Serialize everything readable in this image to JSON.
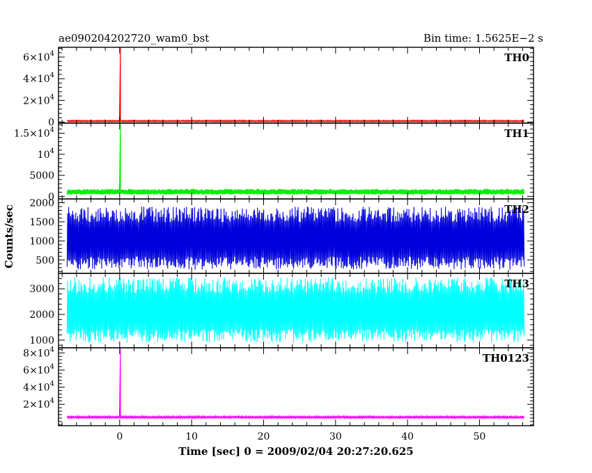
{
  "header": {
    "left_title": "ae090204202720_wam0_bst",
    "right_title": "Bin time: 1.5625E−2 s"
  },
  "chart_data": {
    "type": "line",
    "xlabel": "Time [sec] 0 = 2009/02/04 20:27:20.625",
    "ylabel": "Counts/sec",
    "xlim": [
      -8.5,
      57.5
    ],
    "x_ticks": [
      0,
      10,
      20,
      30,
      40,
      50
    ],
    "x_tick_labels": [
      "0",
      "10",
      "20",
      "30",
      "40",
      "50"
    ],
    "data_x_range": [
      -7.3,
      56.2
    ],
    "grid": false,
    "panels": [
      {
        "name": "TH0",
        "color": "#ff0000",
        "ylim": [
          -1000,
          69000
        ],
        "baseline": 800,
        "noise_low": 300,
        "noise_high": 1600,
        "spike": {
          "x": 0.1,
          "value": 69000
        },
        "y_ticks": [
          {
            "value": 0,
            "mantissa": "0",
            "exp": ""
          },
          {
            "value": 20000,
            "mantissa": "2×10",
            "exp": "4"
          },
          {
            "value": 40000,
            "mantissa": "4×10",
            "exp": "4"
          },
          {
            "value": 60000,
            "mantissa": "6×10",
            "exp": "4"
          }
        ]
      },
      {
        "name": "TH1",
        "color": "#00ee00",
        "ylim": [
          -600,
          17400
        ],
        "baseline": 1000,
        "noise_low": 400,
        "noise_high": 1800,
        "spike": {
          "x": 0.1,
          "value": 17400
        },
        "y_ticks": [
          {
            "value": 0,
            "mantissa": "0",
            "exp": ""
          },
          {
            "value": 5000,
            "mantissa": "5000",
            "exp": ""
          },
          {
            "value": 10000,
            "mantissa": "10",
            "exp": "4"
          },
          {
            "value": 15000,
            "mantissa": "1.5×10",
            "exp": "4"
          }
        ]
      },
      {
        "name": "TH2",
        "color": "#0000dd",
        "ylim": [
          150,
          2100
        ],
        "baseline": 1000,
        "noise_low": 250,
        "noise_high": 1900,
        "spike": null,
        "y_ticks": [
          {
            "value": 500,
            "mantissa": "500",
            "exp": ""
          },
          {
            "value": 1000,
            "mantissa": "1000",
            "exp": ""
          },
          {
            "value": 1500,
            "mantissa": "1500",
            "exp": ""
          },
          {
            "value": 2000,
            "mantissa": "2000",
            "exp": ""
          }
        ]
      },
      {
        "name": "TH3",
        "color": "#00ffff",
        "ylim": [
          700,
          3600
        ],
        "baseline": 2100,
        "noise_low": 900,
        "noise_high": 3450,
        "spike": null,
        "y_ticks": [
          {
            "value": 1000,
            "mantissa": "1000",
            "exp": ""
          },
          {
            "value": 2000,
            "mantissa": "2000",
            "exp": ""
          },
          {
            "value": 3000,
            "mantissa": "3000",
            "exp": ""
          }
        ]
      },
      {
        "name": "TH0123",
        "color": "#ff00ff",
        "ylim": [
          -5000,
          86000
        ],
        "baseline": 4800,
        "noise_low": 3800,
        "noise_high": 6200,
        "spike": {
          "x": 0.1,
          "value": 86000
        },
        "y_ticks": [
          {
            "value": 20000,
            "mantissa": "2×10",
            "exp": "4"
          },
          {
            "value": 40000,
            "mantissa": "4×10",
            "exp": "4"
          },
          {
            "value": 60000,
            "mantissa": "6×10",
            "exp": "4"
          },
          {
            "value": 80000,
            "mantissa": "8×10",
            "exp": "4"
          }
        ]
      }
    ]
  }
}
